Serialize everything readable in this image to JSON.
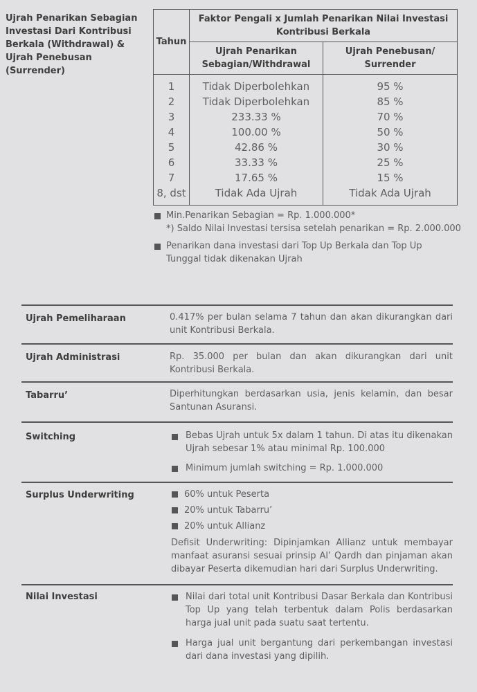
{
  "withdrawal": {
    "title": "Ujrah Penarikan Sebagian Investasi Dari Kontribusi Berkala (Withdrawal) & Ujrah Penebusan (Surrender)",
    "table": {
      "col_year": "Tahun",
      "group_header": "Faktor Pengali x Jumlah Penarikan Nilai Investasi Kontribusi Berkala",
      "col_withdrawal": "Ujrah Penarikan Sebagian/Withdrawal",
      "col_surrender": "Ujrah Penebusan/ Surrender",
      "rows": [
        {
          "year": "1",
          "withdrawal": "Tidak Diperbolehkan",
          "surrender": "95 %"
        },
        {
          "year": "2",
          "withdrawal": "Tidak Diperbolehkan",
          "surrender": "85 %"
        },
        {
          "year": "3",
          "withdrawal": "233.33 %",
          "surrender": "70 %"
        },
        {
          "year": "4",
          "withdrawal": "100.00 %",
          "surrender": "50 %"
        },
        {
          "year": "5",
          "withdrawal": "42.86 %",
          "surrender": "30 %"
        },
        {
          "year": "6",
          "withdrawal": "33.33 %",
          "surrender": "25 %"
        },
        {
          "year": "7",
          "withdrawal": "17.65 %",
          "surrender": "15 %"
        },
        {
          "year": "8, dst",
          "withdrawal": "Tidak Ada Ujrah",
          "surrender": "Tidak Ada Ujrah"
        }
      ]
    },
    "notes": [
      "Min.Penarikan Sebagian = Rp. 1.000.000*",
      "*) Saldo Nilai Investasi tersisa setelah penarikan = Rp. 2.000.000",
      "Penarikan dana investasi dari Top Up Berkala dan Top Up Tunggal tidak dikenakan Ujrah"
    ]
  },
  "fees": [
    {
      "label": "Ujrah Pemeliharaan",
      "text": "0.417% per bulan selama 7 tahun dan akan dikurangkan dari unit Kontribusi Berkala."
    },
    {
      "label": "Ujrah Administrasi",
      "text": "Rp. 35.000 per bulan dan akan dikurangkan dari unit Kontribusi Berkala."
    },
    {
      "label": "Tabarru’",
      "text": "Diperhitungkan berdasarkan usia, jenis kelamin, dan besar Santunan Asuransi."
    },
    {
      "label": "Switching",
      "bullets": [
        "Bebas Ujrah untuk 5x dalam 1 tahun. Di atas itu dikenakan Ujrah sebesar 1% atau minimal Rp. 100.000",
        "Minimum jumlah switching = Rp. 1.000.000"
      ]
    },
    {
      "label": "Surplus Underwriting",
      "bullets": [
        "60% untuk Peserta",
        "20% untuk Tabarru’",
        "20% untuk Allianz"
      ],
      "text": "Defisit Underwriting: Dipinjamkan Allianz untuk membayar manfaat asuransi sesuai prinsip Al’ Qardh dan pinjaman akan dibayar Peserta dikemudian hari dari Surplus Underwriting."
    },
    {
      "label": "Nilai Investasi",
      "bullets": [
        "Nilai dari total unit Kontribusi Dasar Berkala dan Kontribusi Top Up yang telah terbentuk dalam Polis berdasarkan harga jual unit pada suatu saat tertentu.",
        "Harga jual unit bergantung dari perkembangan investasi dari dana investasi yang dipilih."
      ]
    }
  ]
}
